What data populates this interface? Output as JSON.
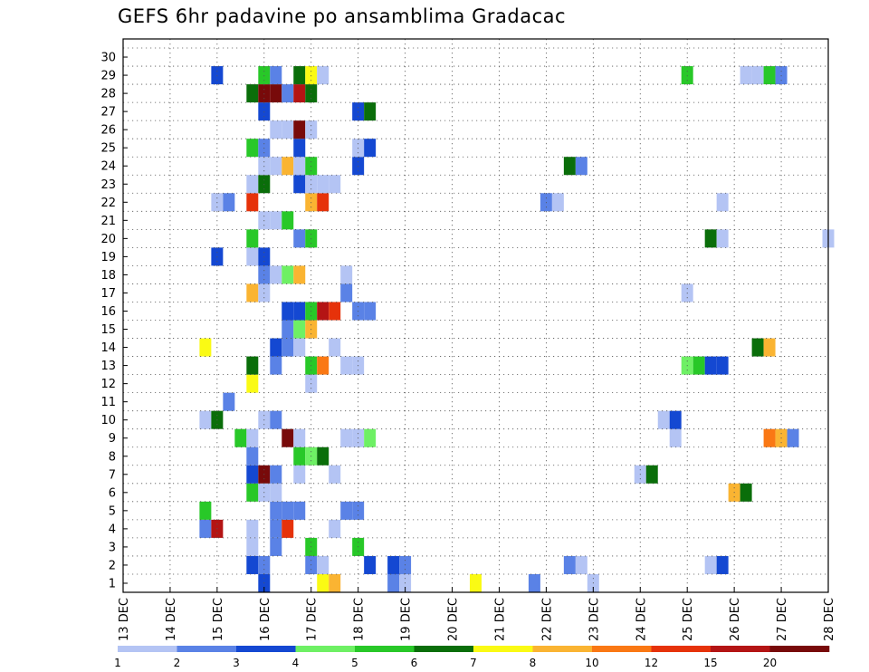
{
  "chart_data": {
    "type": "heatmap",
    "title": "GEFS 6hr padavine po ansamblima Gradacac",
    "xlabel": "",
    "ylabel": "",
    "x_ticks": [
      "13 DEC",
      "14 DEC",
      "15 DEC",
      "16 DEC",
      "17 DEC",
      "18 DEC",
      "19 DEC",
      "20 DEC",
      "21 DEC",
      "22 DEC",
      "23 DEC",
      "24 DEC",
      "25 DEC",
      "26 DEC",
      "27 DEC",
      "28 DEC"
    ],
    "y_ticks": [
      "1",
      "2",
      "3",
      "4",
      "5",
      "6",
      "7",
      "8",
      "9",
      "10",
      "11",
      "12",
      "13",
      "14",
      "15",
      "16",
      "17",
      "18",
      "19",
      "20",
      "21",
      "22",
      "23",
      "24",
      "25",
      "26",
      "27",
      "28",
      "29",
      "30"
    ],
    "x_unit": "6-hour step from 13 DEC 00Z",
    "n_steps": 60,
    "members": 30,
    "grid": true,
    "colorbar": {
      "labels": [
        "1",
        "2",
        "3",
        "4",
        "5",
        "6",
        "7",
        "8",
        "10",
        "12",
        "15",
        "20"
      ],
      "colors": [
        "#b4c4f4",
        "#5a82e6",
        "#1448d2",
        "#6ef064",
        "#28c828",
        "#0a6e0a",
        "#fafa14",
        "#fab432",
        "#fa7814",
        "#e6320a",
        "#b41414",
        "#780a0a"
      ]
    },
    "cells": [
      [
        0,
        12,
        3
      ],
      [
        0,
        17,
        7
      ],
      [
        0,
        18,
        8
      ],
      [
        0,
        23,
        2
      ],
      [
        0,
        24,
        1
      ],
      [
        0,
        30,
        7
      ],
      [
        0,
        35,
        2
      ],
      [
        0,
        40,
        1
      ],
      [
        1,
        11,
        3
      ],
      [
        1,
        12,
        2
      ],
      [
        1,
        16,
        2
      ],
      [
        1,
        17,
        1
      ],
      [
        1,
        21,
        3
      ],
      [
        1,
        23,
        3
      ],
      [
        1,
        24,
        2
      ],
      [
        1,
        38,
        2
      ],
      [
        1,
        39,
        1
      ],
      [
        1,
        50,
        1
      ],
      [
        1,
        51,
        3
      ],
      [
        2,
        11,
        1
      ],
      [
        2,
        13,
        2
      ],
      [
        2,
        16,
        5
      ],
      [
        2,
        20,
        5
      ],
      [
        3,
        7,
        2
      ],
      [
        3,
        8,
        11
      ],
      [
        3,
        11,
        1
      ],
      [
        3,
        13,
        2
      ],
      [
        3,
        14,
        10
      ],
      [
        3,
        18,
        1
      ],
      [
        4,
        7,
        5
      ],
      [
        4,
        13,
        2
      ],
      [
        4,
        14,
        2
      ],
      [
        4,
        15,
        2
      ],
      [
        4,
        19,
        2
      ],
      [
        4,
        20,
        2
      ],
      [
        5,
        11,
        5
      ],
      [
        5,
        12,
        1
      ],
      [
        5,
        13,
        1
      ],
      [
        5,
        52,
        8
      ],
      [
        5,
        53,
        6
      ],
      [
        6,
        11,
        3
      ],
      [
        6,
        12,
        12
      ],
      [
        6,
        13,
        2
      ],
      [
        6,
        15,
        1
      ],
      [
        6,
        18,
        1
      ],
      [
        6,
        44,
        1
      ],
      [
        6,
        45,
        6
      ],
      [
        7,
        11,
        2
      ],
      [
        7,
        15,
        5
      ],
      [
        7,
        16,
        4
      ],
      [
        7,
        17,
        6
      ],
      [
        8,
        10,
        5
      ],
      [
        8,
        11,
        1
      ],
      [
        8,
        14,
        12
      ],
      [
        8,
        15,
        1
      ],
      [
        8,
        19,
        1
      ],
      [
        8,
        20,
        1
      ],
      [
        8,
        21,
        4
      ],
      [
        8,
        47,
        1
      ],
      [
        8,
        55,
        9
      ],
      [
        8,
        56,
        8
      ],
      [
        8,
        57,
        2
      ],
      [
        9,
        7,
        1
      ],
      [
        9,
        8,
        6
      ],
      [
        9,
        12,
        1
      ],
      [
        9,
        13,
        2
      ],
      [
        9,
        46,
        1
      ],
      [
        9,
        47,
        3
      ],
      [
        10,
        9,
        2
      ],
      [
        11,
        11,
        7
      ],
      [
        11,
        16,
        1
      ],
      [
        12,
        11,
        6
      ],
      [
        12,
        13,
        2
      ],
      [
        12,
        16,
        5
      ],
      [
        12,
        17,
        9
      ],
      [
        12,
        19,
        1
      ],
      [
        12,
        20,
        1
      ],
      [
        12,
        48,
        4
      ],
      [
        12,
        49,
        5
      ],
      [
        12,
        50,
        3
      ],
      [
        12,
        51,
        3
      ],
      [
        13,
        7,
        7
      ],
      [
        13,
        13,
        3
      ],
      [
        13,
        14,
        2
      ],
      [
        13,
        15,
        1
      ],
      [
        13,
        18,
        1
      ],
      [
        13,
        54,
        6
      ],
      [
        13,
        55,
        8
      ],
      [
        14,
        14,
        2
      ],
      [
        14,
        15,
        4
      ],
      [
        14,
        16,
        8
      ],
      [
        15,
        14,
        3
      ],
      [
        15,
        15,
        3
      ],
      [
        15,
        16,
        5
      ],
      [
        15,
        17,
        11
      ],
      [
        15,
        18,
        10
      ],
      [
        15,
        20,
        2
      ],
      [
        15,
        21,
        2
      ],
      [
        16,
        11,
        8
      ],
      [
        16,
        12,
        1
      ],
      [
        16,
        19,
        2
      ],
      [
        16,
        48,
        1
      ],
      [
        17,
        12,
        2
      ],
      [
        17,
        13,
        1
      ],
      [
        17,
        14,
        4
      ],
      [
        17,
        15,
        8
      ],
      [
        17,
        19,
        1
      ],
      [
        18,
        8,
        3
      ],
      [
        18,
        11,
        1
      ],
      [
        18,
        12,
        3
      ],
      [
        19,
        11,
        5
      ],
      [
        19,
        15,
        2
      ],
      [
        19,
        16,
        5
      ],
      [
        19,
        50,
        6
      ],
      [
        19,
        51,
        1
      ],
      [
        19,
        60,
        1
      ],
      [
        20,
        12,
        1
      ],
      [
        20,
        13,
        1
      ],
      [
        20,
        14,
        5
      ],
      [
        21,
        8,
        1
      ],
      [
        21,
        9,
        2
      ],
      [
        21,
        11,
        10
      ],
      [
        21,
        16,
        8
      ],
      [
        21,
        17,
        10
      ],
      [
        21,
        36,
        2
      ],
      [
        21,
        37,
        1
      ],
      [
        21,
        51,
        1
      ],
      [
        22,
        11,
        1
      ],
      [
        22,
        12,
        6
      ],
      [
        22,
        15,
        3
      ],
      [
        22,
        16,
        1
      ],
      [
        22,
        17,
        1
      ],
      [
        22,
        18,
        1
      ],
      [
        23,
        12,
        1
      ],
      [
        23,
        13,
        1
      ],
      [
        23,
        14,
        8
      ],
      [
        23,
        15,
        1
      ],
      [
        23,
        16,
        5
      ],
      [
        23,
        20,
        3
      ],
      [
        23,
        38,
        6
      ],
      [
        23,
        39,
        2
      ],
      [
        24,
        11,
        5
      ],
      [
        24,
        12,
        2
      ],
      [
        24,
        15,
        3
      ],
      [
        24,
        20,
        1
      ],
      [
        24,
        21,
        3
      ],
      [
        25,
        13,
        1
      ],
      [
        25,
        14,
        1
      ],
      [
        25,
        15,
        12
      ],
      [
        25,
        16,
        1
      ],
      [
        26,
        12,
        3
      ],
      [
        26,
        20,
        3
      ],
      [
        26,
        21,
        6
      ],
      [
        27,
        11,
        6
      ],
      [
        27,
        12,
        12
      ],
      [
        27,
        13,
        12
      ],
      [
        27,
        14,
        2
      ],
      [
        27,
        15,
        11
      ],
      [
        27,
        16,
        6
      ],
      [
        28,
        8,
        3
      ],
      [
        28,
        12,
        5
      ],
      [
        28,
        13,
        2
      ],
      [
        28,
        15,
        6
      ],
      [
        28,
        16,
        7
      ],
      [
        28,
        17,
        1
      ],
      [
        28,
        48,
        5
      ],
      [
        28,
        53,
        1
      ],
      [
        28,
        54,
        1
      ],
      [
        28,
        55,
        5
      ],
      [
        28,
        56,
        2
      ]
    ]
  }
}
